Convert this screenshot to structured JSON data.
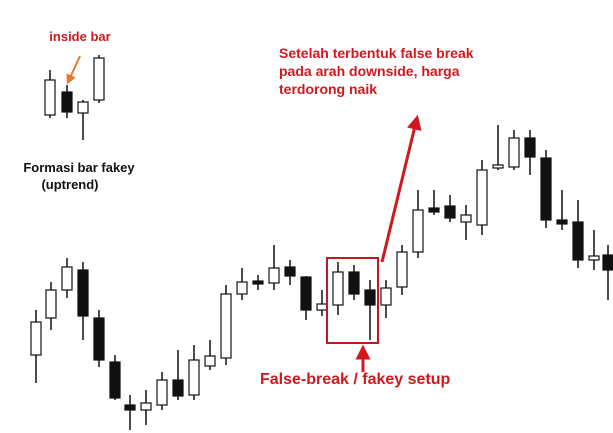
{
  "inset": {
    "label": "inside bar",
    "caption": [
      "Formasi bar fakey",
      "(uptrend)"
    ]
  },
  "annotations": {
    "note": [
      "Setelah terbentuk false break",
      "pada arah downside, harga",
      "terdorong naik"
    ],
    "setup": "False-break / fakey setup"
  }
}
